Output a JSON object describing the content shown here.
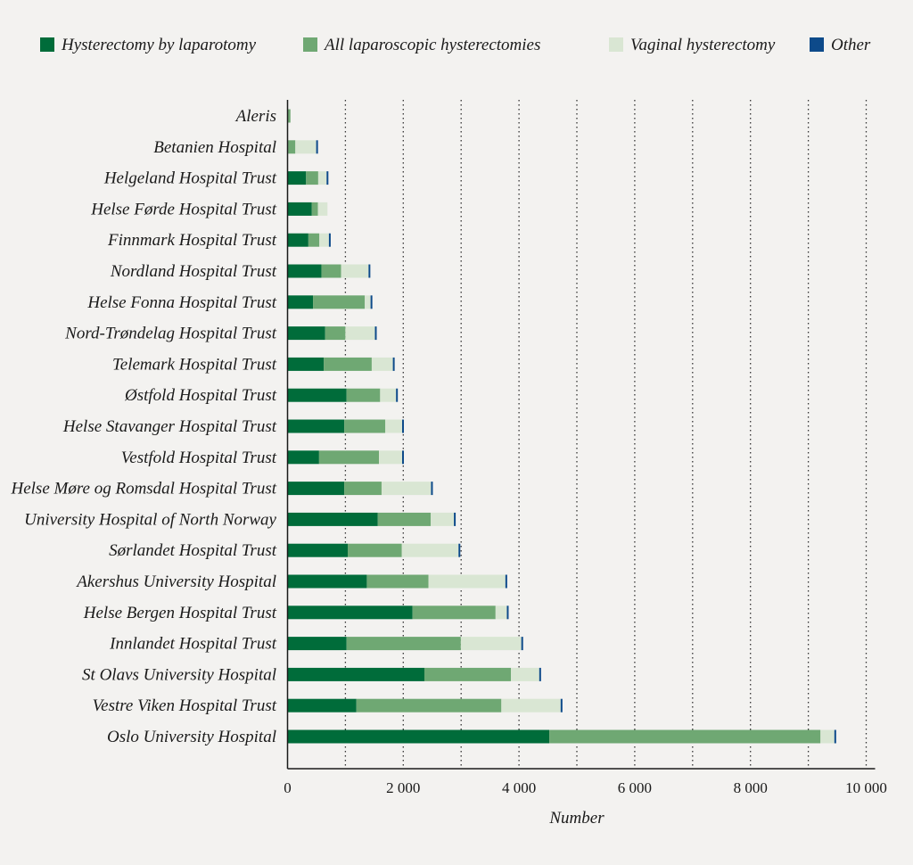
{
  "chart_data": {
    "type": "bar",
    "orientation": "horizontal",
    "stacked": true,
    "title": "",
    "xlabel": "Number",
    "ylabel": "",
    "xlim": [
      0,
      10000
    ],
    "xticks": [
      0,
      2000,
      4000,
      6000,
      8000,
      10000
    ],
    "xtick_labels": [
      "0",
      "2 000",
      "4 000",
      "6 000",
      "8 000",
      "10 000"
    ],
    "grid": "vertical dotted every 1000",
    "legend_position": "top",
    "categories": [
      "Aleris",
      "Betanien Hospital",
      "Helgeland Hospital Trust",
      "Helse Førde Hospital Trust",
      "Finnmark Hospital Trust",
      "Nordland Hospital Trust",
      "Helse Fonna Hospital Trust",
      "Nord-Trøndelag Hospital Trust",
      "Telemark Hospital Trust",
      "Østfold Hospital Trust",
      "Helse Stavanger Hospital Trust",
      "Vestfold Hospital Trust",
      "Helse Møre og Romsdal Hospital Trust",
      "University Hospital of North Norway",
      "Sørlandet Hospital Trust",
      "Akershus University Hospital",
      "Helse Bergen Hospital Trust",
      "Innlandet Hospital Trust",
      "St Olavs University Hospital",
      "Vestre Viken Hospital Trust",
      "Oslo University Hospital"
    ],
    "series": [
      {
        "name": "Hysterectomy by laparotomy",
        "color": "#006c3a",
        "values": [
          0,
          10,
          320,
          420,
          360,
          585,
          440,
          650,
          625,
          1020,
          980,
          545,
          980,
          1560,
          1040,
          1370,
          2160,
          1020,
          2365,
          1190,
          4525
        ]
      },
      {
        "name": "All laparoscopic hysterectomies",
        "color": "#6fa873",
        "values": [
          50,
          125,
          210,
          105,
          190,
          340,
          895,
          350,
          830,
          580,
          710,
          1035,
          645,
          915,
          935,
          1065,
          1435,
          1975,
          1495,
          2505,
          4685
        ]
      },
      {
        "name": "Vaginal hysterectomy",
        "color": "#d9e6d3",
        "values": [
          0,
          360,
          145,
          165,
          165,
          475,
          100,
          510,
          365,
          275,
          290,
          400,
          855,
          400,
          980,
          1330,
          195,
          1045,
          490,
          1025,
          240
        ]
      },
      {
        "name": "Other",
        "color": "#0d4a8a",
        "values": [
          0,
          10,
          15,
          0,
          17,
          20,
          15,
          15,
          20,
          20,
          10,
          10,
          10,
          10,
          10,
          15,
          10,
          15,
          10,
          10,
          12
        ]
      }
    ]
  }
}
